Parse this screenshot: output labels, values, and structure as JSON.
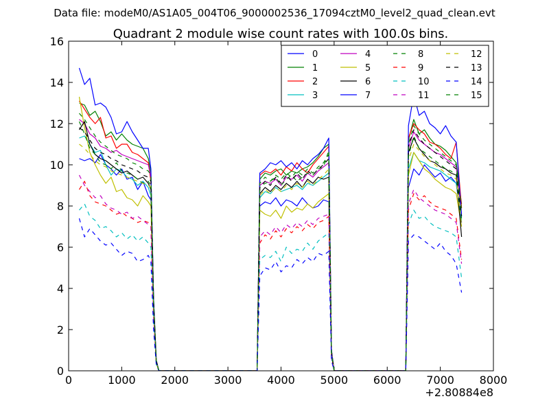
{
  "header": {
    "suptitle": "Data file: modeM0/AS1A05_004T06_9000002536_17094cztM0_level2_quad_clean.evt"
  },
  "chart_data": {
    "type": "line",
    "title": "Quadrant 2 module wise count rates with 100.0s bins.",
    "xlabel": "",
    "ylabel": "",
    "x_offset_label": "+2.80884e8",
    "xlim": [
      0,
      8000
    ],
    "ylim": [
      0,
      16
    ],
    "x_ticks": [
      0,
      1000,
      2000,
      3000,
      4000,
      5000,
      6000,
      7000,
      8000
    ],
    "y_ticks": [
      0,
      2,
      4,
      6,
      8,
      10,
      12,
      14,
      16
    ],
    "legend_position": "top-right",
    "x": [
      200,
      300,
      400,
      500,
      600,
      700,
      800,
      900,
      1000,
      1100,
      1200,
      1300,
      1400,
      1500,
      1550,
      1600,
      1650,
      1700,
      1750,
      3500,
      3550,
      3600,
      3700,
      3800,
      3900,
      4000,
      4100,
      4200,
      4300,
      4400,
      4500,
      4600,
      4700,
      4800,
      4900,
      4950,
      5000,
      5050,
      5100,
      6300,
      6350,
      6400,
      6500,
      6600,
      6700,
      6800,
      6900,
      7000,
      7100,
      7200,
      7300,
      7400
    ],
    "series": [
      {
        "name": "0",
        "color": "#0000ff",
        "dash": "solid",
        "values": [
          10.3,
          10.2,
          10.3,
          10.1,
          10.5,
          10.0,
          9.8,
          9.5,
          9.8,
          9.3,
          9.4,
          8.8,
          9.2,
          8.5,
          8.3,
          3.3,
          0.5,
          0,
          0,
          0,
          0,
          8.0,
          8.2,
          8.1,
          8.4,
          8.0,
          8.3,
          8.2,
          8.0,
          8.4,
          8.1,
          7.9,
          8.0,
          8.3,
          8.2,
          0.9,
          0,
          0,
          0,
          0,
          0,
          8.9,
          9.8,
          9.5,
          10.0,
          9.7,
          9.4,
          9.6,
          9.2,
          9.4,
          9.1,
          7.2
        ]
      },
      {
        "name": "1",
        "color": "#008000",
        "dash": "solid",
        "values": [
          13.0,
          12.9,
          12.4,
          12.6,
          12.1,
          11.4,
          11.6,
          11.2,
          11.5,
          11.2,
          11.0,
          10.9,
          10.8,
          10.3,
          9.6,
          3.5,
          0.5,
          0,
          0,
          0,
          0,
          9.3,
          9.6,
          9.5,
          9.7,
          9.8,
          9.5,
          9.7,
          9.6,
          9.8,
          9.9,
          10.1,
          10.4,
          10.8,
          11.0,
          1.0,
          0,
          0,
          0,
          0,
          0,
          11.2,
          12.2,
          11.5,
          11.7,
          11.3,
          11.0,
          10.9,
          10.7,
          10.4,
          10.1,
          8.1
        ]
      },
      {
        "name": "2",
        "color": "#ff0000",
        "dash": "solid",
        "values": [
          13.1,
          12.7,
          12.3,
          12.0,
          12.3,
          11.3,
          11.4,
          10.8,
          11.0,
          11.0,
          10.6,
          10.5,
          10.3,
          10.1,
          9.2,
          3.4,
          0.5,
          0,
          0,
          0,
          0,
          9.5,
          9.7,
          9.6,
          9.8,
          9.5,
          9.9,
          9.7,
          10.1,
          9.8,
          9.6,
          10.0,
          10.3,
          10.6,
          10.9,
          1.0,
          0,
          0,
          0,
          0,
          0,
          11.3,
          12.0,
          11.7,
          11.5,
          11.1,
          11.0,
          10.8,
          10.5,
          10.3,
          11.1,
          7.9
        ]
      },
      {
        "name": "3",
        "color": "#00bfbf",
        "dash": "solid",
        "values": [
          11.3,
          11.4,
          11.0,
          10.6,
          10.7,
          10.0,
          9.5,
          9.8,
          9.7,
          9.4,
          9.3,
          9.0,
          9.2,
          8.9,
          8.5,
          3.1,
          0.4,
          0,
          0,
          0,
          0,
          8.4,
          8.7,
          8.6,
          8.9,
          8.7,
          8.8,
          8.9,
          9.0,
          8.8,
          9.1,
          9.0,
          9.2,
          9.4,
          9.6,
          0.9,
          0,
          0,
          0,
          0,
          0,
          9.8,
          10.6,
          10.2,
          10.1,
          9.9,
          9.8,
          9.7,
          9.5,
          9.3,
          9.1,
          7.3
        ]
      },
      {
        "name": "4",
        "color": "#bf00bf",
        "dash": "solid",
        "values": [
          12.2,
          12.0,
          11.5,
          11.3,
          10.9,
          10.8,
          10.6,
          10.7,
          10.5,
          10.4,
          10.3,
          10.2,
          10.1,
          10.0,
          9.4,
          3.4,
          0.5,
          0,
          0,
          0,
          0,
          9.0,
          9.2,
          9.1,
          9.3,
          9.0,
          9.4,
          9.3,
          9.5,
          9.2,
          9.6,
          9.4,
          9.7,
          9.9,
          10.1,
          0.9,
          0,
          0,
          0,
          0,
          0,
          10.8,
          11.6,
          11.2,
          11.0,
          10.8,
          10.6,
          10.5,
          10.3,
          10.1,
          9.9,
          7.6
        ]
      },
      {
        "name": "5",
        "color": "#bfbf00",
        "dash": "solid",
        "values": [
          13.3,
          11.8,
          10.6,
          10.0,
          9.5,
          9.1,
          9.4,
          8.7,
          8.8,
          8.4,
          8.3,
          8.0,
          8.5,
          8.2,
          8.0,
          3.0,
          0.4,
          0,
          0,
          0,
          0,
          7.8,
          7.6,
          7.5,
          7.8,
          7.4,
          8.0,
          7.7,
          7.9,
          7.8,
          8.1,
          7.9,
          8.2,
          8.4,
          8.6,
          0.8,
          0,
          0,
          0,
          0,
          0,
          9.5,
          10.6,
          10.2,
          9.8,
          9.6,
          9.3,
          9.1,
          8.9,
          8.8,
          8.6,
          7.0
        ]
      },
      {
        "name": "6",
        "color": "#000000",
        "dash": "solid",
        "values": [
          11.7,
          12.1,
          11.0,
          10.5,
          10.3,
          10.2,
          10.0,
          9.8,
          9.6,
          9.7,
          9.5,
          9.3,
          9.4,
          9.1,
          8.8,
          3.2,
          0.4,
          0,
          0,
          0,
          0,
          8.6,
          8.9,
          8.7,
          9.0,
          8.8,
          9.1,
          8.9,
          9.2,
          8.9,
          9.3,
          9.1,
          9.4,
          9.3,
          9.4,
          0.9,
          0,
          0,
          0,
          0,
          0,
          10.6,
          11.3,
          10.8,
          10.5,
          10.2,
          10.1,
          9.9,
          9.8,
          9.6,
          9.5,
          6.5
        ]
      },
      {
        "name": "7",
        "color": "#0000ff",
        "dash": "solid",
        "values": [
          14.7,
          13.9,
          14.2,
          12.9,
          13.0,
          12.8,
          12.3,
          11.5,
          11.6,
          12.1,
          11.6,
          11.2,
          10.8,
          10.8,
          9.8,
          3.5,
          0.5,
          0,
          0,
          0,
          0,
          9.6,
          9.8,
          10.1,
          10.0,
          10.2,
          9.9,
          10.1,
          9.8,
          10.2,
          10.0,
          10.3,
          10.5,
          10.8,
          11.3,
          1.0,
          0,
          0,
          0,
          0,
          0,
          11.9,
          13.4,
          12.4,
          12.6,
          12.0,
          11.8,
          11.5,
          11.9,
          11.4,
          11.1,
          7.5
        ]
      },
      {
        "name": "8",
        "color": "#008000",
        "dash": "dashed",
        "values": [
          12.1,
          11.5,
          10.8,
          10.5,
          10.1,
          10.0,
          9.8,
          10.1,
          9.7,
          9.6,
          9.5,
          9.3,
          9.1,
          9.2,
          9.0,
          3.3,
          0.5,
          0,
          0,
          0,
          0,
          8.9,
          9.1,
          9.2,
          9.4,
          9.0,
          9.3,
          9.5,
          9.2,
          9.4,
          9.6,
          9.5,
          9.8,
          9.9,
          10.7,
          0.9,
          0,
          0,
          0,
          0,
          0,
          10.4,
          11.4,
          10.8,
          10.6,
          10.4,
          10.2,
          10.0,
          9.8,
          9.7,
          9.5,
          7.4
        ]
      },
      {
        "name": "9",
        "color": "#ff0000",
        "dash": "dashed",
        "values": [
          8.8,
          9.2,
          8.5,
          8.2,
          8.1,
          8.0,
          7.8,
          7.6,
          7.7,
          7.5,
          7.4,
          7.2,
          7.3,
          7.2,
          7.0,
          2.6,
          0.4,
          0,
          0,
          0,
          0,
          6.2,
          6.6,
          6.4,
          6.8,
          6.5,
          6.9,
          6.7,
          7.0,
          6.8,
          7.1,
          6.9,
          7.2,
          7.3,
          7.5,
          0.7,
          0,
          0,
          0,
          0,
          0,
          7.8,
          8.6,
          8.3,
          8.5,
          8.2,
          8.0,
          7.9,
          7.8,
          7.6,
          7.4,
          5.4
        ]
      },
      {
        "name": "10",
        "color": "#00bfbf",
        "dash": "dashed",
        "values": [
          7.8,
          8.1,
          7.5,
          7.3,
          6.9,
          7.0,
          6.8,
          6.5,
          6.7,
          6.4,
          6.6,
          6.3,
          6.5,
          6.2,
          6.0,
          2.3,
          0.3,
          0,
          0,
          0,
          0,
          5.4,
          5.6,
          5.5,
          5.8,
          5.3,
          6.0,
          5.7,
          5.9,
          5.8,
          6.2,
          5.9,
          6.3,
          6.5,
          6.7,
          0.6,
          0,
          0,
          0,
          0,
          0,
          7.1,
          7.8,
          7.4,
          7.5,
          7.2,
          7.0,
          6.9,
          6.8,
          6.7,
          6.5,
          4.5
        ]
      },
      {
        "name": "11",
        "color": "#bf00bf",
        "dash": "dashed",
        "values": [
          9.5,
          9.0,
          8.7,
          8.4,
          8.5,
          8.1,
          7.9,
          7.8,
          7.6,
          7.7,
          7.4,
          7.5,
          7.3,
          7.1,
          7.0,
          2.6,
          0.4,
          0,
          0,
          0,
          0,
          6.5,
          6.8,
          6.6,
          7.0,
          6.7,
          7.1,
          6.9,
          7.2,
          7.0,
          7.3,
          7.1,
          7.4,
          7.5,
          7.6,
          0.7,
          0,
          0,
          0,
          0,
          0,
          8.1,
          8.8,
          8.4,
          8.2,
          8.0,
          7.8,
          7.7,
          7.6,
          7.4,
          7.2,
          5.2
        ]
      },
      {
        "name": "12",
        "color": "#bfbf00",
        "dash": "dashed",
        "values": [
          11.0,
          10.8,
          10.5,
          10.2,
          10.0,
          9.9,
          9.7,
          9.6,
          9.5,
          9.4,
          9.3,
          9.2,
          9.1,
          9.0,
          8.9,
          3.2,
          0.4,
          0,
          0,
          0,
          0,
          8.5,
          8.8,
          8.6,
          8.9,
          8.7,
          9.0,
          8.8,
          9.1,
          8.9,
          9.2,
          9.0,
          9.3,
          9.5,
          9.8,
          0.9,
          0,
          0,
          0,
          0,
          0,
          10.2,
          11.0,
          10.7,
          10.4,
          10.2,
          10.0,
          9.8,
          9.6,
          9.5,
          9.3,
          7.1
        ]
      },
      {
        "name": "13",
        "color": "#000000",
        "dash": "dashed",
        "values": [
          11.8,
          11.6,
          11.2,
          10.8,
          10.6,
          10.5,
          10.3,
          10.2,
          10.0,
          9.9,
          9.8,
          9.7,
          9.5,
          9.4,
          9.2,
          3.3,
          0.5,
          0,
          0,
          0,
          0,
          8.9,
          9.2,
          9.0,
          9.4,
          9.1,
          9.5,
          9.2,
          9.6,
          9.3,
          9.7,
          9.5,
          9.8,
          10.0,
          10.3,
          0.9,
          0,
          0,
          0,
          0,
          0,
          10.9,
          11.7,
          11.3,
          11.0,
          10.8,
          10.6,
          10.4,
          10.2,
          10.0,
          9.8,
          7.5
        ]
      },
      {
        "name": "14",
        "color": "#0000ff",
        "dash": "dashed",
        "values": [
          7.4,
          6.5,
          6.9,
          6.6,
          6.3,
          6.1,
          6.2,
          5.9,
          5.6,
          5.8,
          5.7,
          5.3,
          5.4,
          5.6,
          5.3,
          2.0,
          0.3,
          0,
          0,
          0,
          0,
          4.6,
          5.0,
          4.9,
          5.3,
          4.8,
          5.1,
          5.0,
          5.4,
          5.2,
          5.5,
          5.3,
          5.7,
          5.6,
          5.8,
          0.5,
          0,
          0,
          0,
          0,
          0,
          6.3,
          6.6,
          6.5,
          6.3,
          6.1,
          5.9,
          6.2,
          5.8,
          5.6,
          5.2,
          3.8
        ]
      },
      {
        "name": "15",
        "color": "#008000",
        "dash": "dashed",
        "values": [
          12.5,
          12.2,
          11.8,
          11.4,
          11.1,
          10.9,
          10.7,
          10.5,
          10.4,
          10.3,
          10.1,
          10.0,
          9.8,
          9.7,
          9.5,
          3.4,
          0.5,
          0,
          0,
          0,
          0,
          9.1,
          9.4,
          9.2,
          9.5,
          9.3,
          9.6,
          9.4,
          9.7,
          9.5,
          9.8,
          9.6,
          9.9,
          10.1,
          10.5,
          0.9,
          0,
          0,
          0,
          0,
          0,
          11.0,
          11.9,
          11.5,
          11.2,
          11.0,
          10.8,
          10.6,
          10.4,
          10.2,
          10.0,
          7.8
        ]
      }
    ]
  }
}
